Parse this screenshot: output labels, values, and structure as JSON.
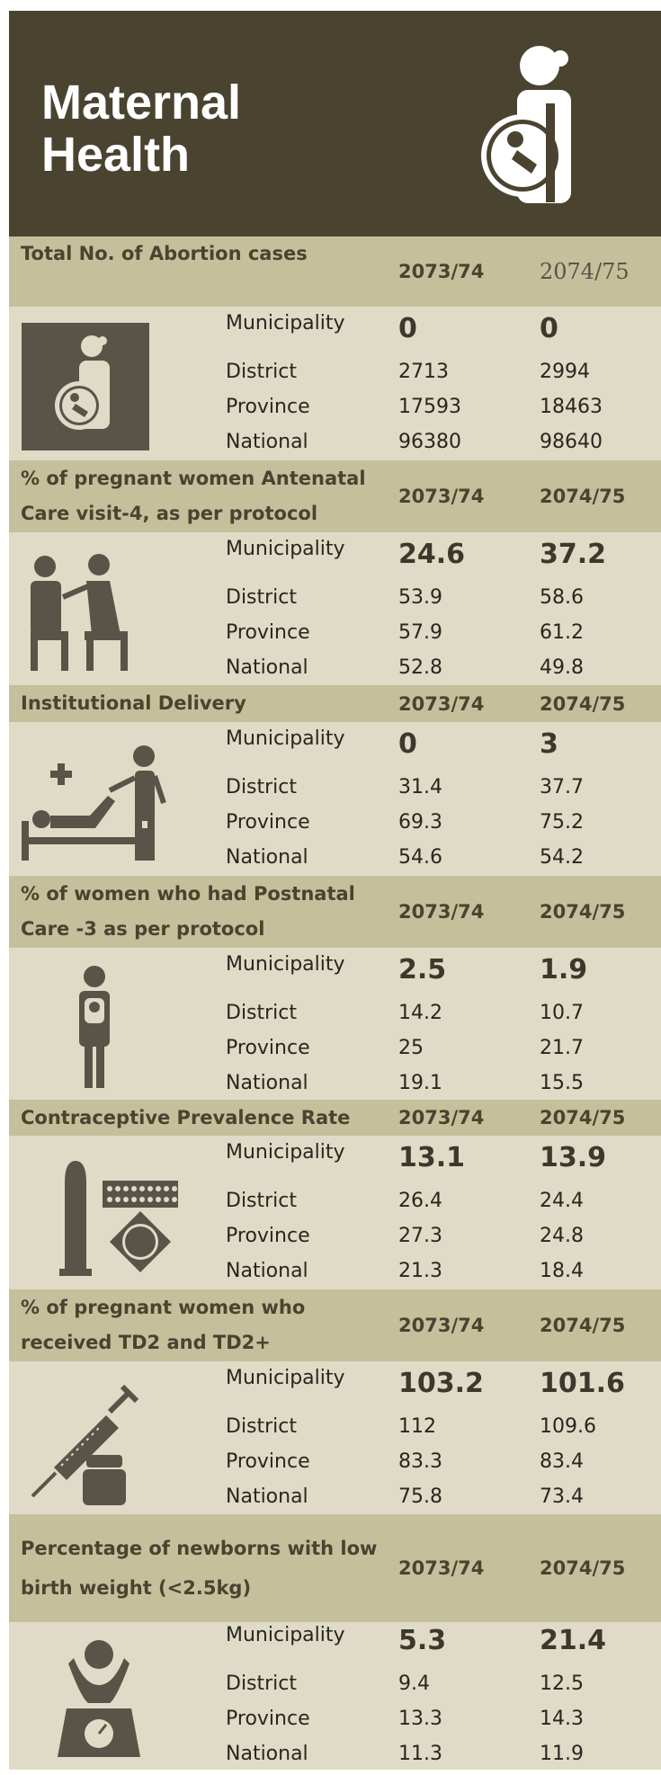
{
  "header": {
    "title": "Maternal Health"
  },
  "sections": [
    {
      "title": "Total No. of Abortion cases",
      "years": [
        "2073/74",
        "2074/75"
      ],
      "rows": [
        {
          "label": "Municipality",
          "values": [
            0,
            0
          ]
        },
        {
          "label": "District",
          "values": [
            2713,
            2994
          ]
        },
        {
          "label": "Province",
          "values": [
            17593,
            18463
          ]
        },
        {
          "label": "National",
          "values": [
            96380,
            98640
          ]
        }
      ]
    },
    {
      "title": "% of pregnant women Antenatal Care visit-4, as per protocol",
      "years": [
        "2073/74",
        "2074/75"
      ],
      "rows": [
        {
          "label": "Municipality",
          "values": [
            24.6,
            37.2
          ]
        },
        {
          "label": "District",
          "values": [
            53.9,
            58.6
          ]
        },
        {
          "label": "Province",
          "values": [
            57.9,
            61.2
          ]
        },
        {
          "label": "National",
          "values": [
            52.8,
            49.8
          ]
        }
      ]
    },
    {
      "title": "Institutional Delivery",
      "years": [
        "2073/74",
        "2074/75"
      ],
      "rows": [
        {
          "label": "Municipality",
          "values": [
            0,
            3
          ]
        },
        {
          "label": "District",
          "values": [
            31.4,
            37.7
          ]
        },
        {
          "label": "Province",
          "values": [
            69.3,
            75.2
          ]
        },
        {
          "label": "National",
          "values": [
            54.6,
            54.2
          ]
        }
      ]
    },
    {
      "title": "% of women who had Postnatal Care -3 as per protocol",
      "years": [
        "2073/74",
        "2074/75"
      ],
      "rows": [
        {
          "label": "Municipality",
          "values": [
            2.5,
            1.9
          ]
        },
        {
          "label": "District",
          "values": [
            14.2,
            10.7
          ]
        },
        {
          "label": "Province",
          "values": [
            25,
            21.7
          ]
        },
        {
          "label": "National",
          "values": [
            19.1,
            15.5
          ]
        }
      ]
    },
    {
      "title": "Contraceptive Prevalence Rate",
      "years": [
        "2073/74",
        "2074/75"
      ],
      "rows": [
        {
          "label": "Municipality",
          "values": [
            13.1,
            13.9
          ]
        },
        {
          "label": "District",
          "values": [
            26.4,
            24.4
          ]
        },
        {
          "label": "Province",
          "values": [
            27.3,
            24.8
          ]
        },
        {
          "label": "National",
          "values": [
            21.3,
            18.4
          ]
        }
      ]
    },
    {
      "title": "% of pregnant women who received TD2 and TD2+",
      "years": [
        "2073/74",
        "2074/75"
      ],
      "rows": [
        {
          "label": "Municipality",
          "values": [
            103.2,
            101.6
          ]
        },
        {
          "label": "District",
          "values": [
            112,
            109.6
          ]
        },
        {
          "label": "Province",
          "values": [
            83.3,
            83.4
          ]
        },
        {
          "label": "National",
          "values": [
            75.8,
            73.4
          ]
        }
      ]
    },
    {
      "title": "Percentage of newborns with low birth weight (<2.5kg)",
      "years": [
        "2073/74",
        "2074/75"
      ],
      "rows": [
        {
          "label": "Municipality",
          "values": [
            5.3,
            21.4
          ]
        },
        {
          "label": "District",
          "values": [
            9.4,
            12.5
          ]
        },
        {
          "label": "Province",
          "values": [
            13.3,
            14.3
          ]
        },
        {
          "label": "National",
          "values": [
            11.3,
            11.9
          ]
        }
      ]
    }
  ]
}
